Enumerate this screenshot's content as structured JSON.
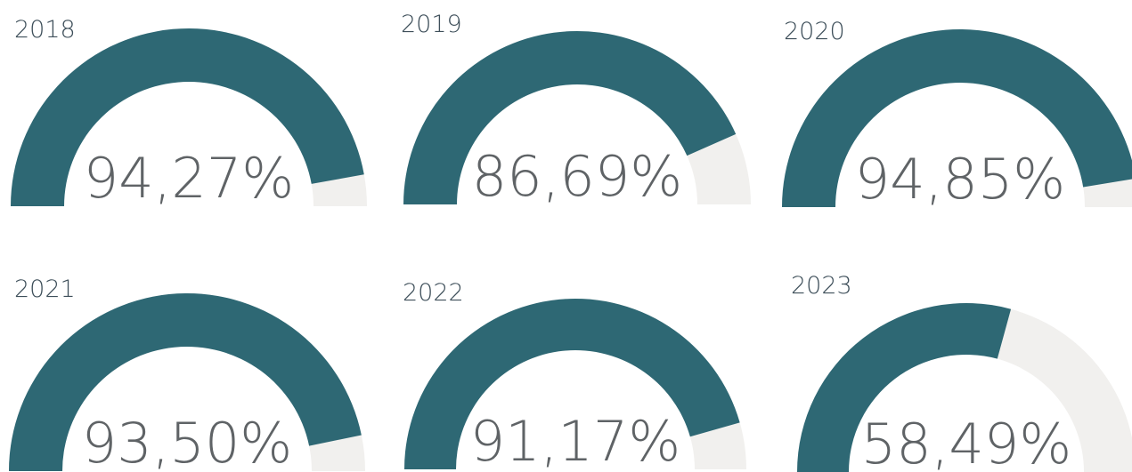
{
  "chart_data": [
    {
      "type": "gauge",
      "title": "2018",
      "values": [
        94.27
      ],
      "value_labels": [
        "94,27%"
      ],
      "ylim": [
        0,
        100
      ],
      "color": "#2e6874",
      "track_color": "#f1f0ee"
    },
    {
      "type": "gauge",
      "title": "2019",
      "values": [
        86.69
      ],
      "value_labels": [
        "86,69%"
      ],
      "ylim": [
        0,
        100
      ],
      "color": "#2e6874",
      "track_color": "#f1f0ee"
    },
    {
      "type": "gauge",
      "title": "2020",
      "values": [
        94.85
      ],
      "value_labels": [
        "94,85%"
      ],
      "ylim": [
        0,
        100
      ],
      "color": "#2e6874",
      "track_color": "#f1f0ee"
    },
    {
      "type": "gauge",
      "title": "2021",
      "values": [
        93.5
      ],
      "value_labels": [
        "93,50%"
      ],
      "ylim": [
        0,
        100
      ],
      "color": "#2e6874",
      "track_color": "#f1f0ee"
    },
    {
      "type": "gauge",
      "title": "2022",
      "values": [
        91.17
      ],
      "value_labels": [
        "91,17%"
      ],
      "ylim": [
        0,
        100
      ],
      "color": "#2e6874",
      "track_color": "#f1f0ee"
    },
    {
      "type": "gauge",
      "title": "2023",
      "values": [
        58.49
      ],
      "value_labels": [
        "58,49%"
      ],
      "ylim": [
        0,
        100
      ],
      "color": "#2e6874",
      "track_color": "#f1f0ee"
    }
  ]
}
